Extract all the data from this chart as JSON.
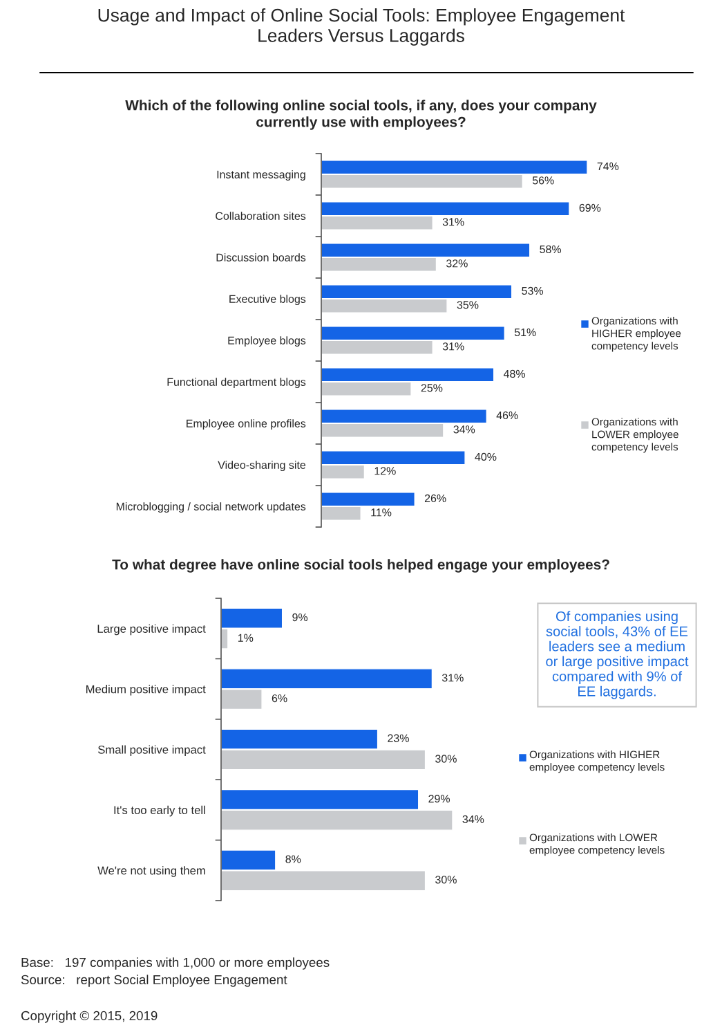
{
  "chart_data": [
    {
      "type": "bar",
      "orientation": "horizontal",
      "title": "Usage and Impact of Online Social Tools: Employee Engagement Leaders Versus Laggards",
      "subtitle": "Which of the following online social tools, if any, does your company currently use with employees?",
      "categories": [
        "Instant messaging",
        "Collaboration sites",
        "Discussion boards",
        "Executive blogs",
        "Employee blogs",
        "Functional department blogs",
        "Employee online profiles",
        "Video-sharing site",
        "Microblogging / social network updates"
      ],
      "series": [
        {
          "name": "Organizations with HIGHER employee competency levels",
          "color": "#1464e6",
          "values": [
            74,
            69,
            58,
            53,
            51,
            48,
            46,
            40,
            26
          ],
          "value_labels": [
            "74%",
            "69%",
            "58%",
            "53%",
            "51%",
            "48%",
            "46%",
            "40%",
            "26%"
          ]
        },
        {
          "name": "Organizations with LOWER employee competency levels",
          "color": "#c9cbce",
          "values": [
            56,
            31,
            32,
            35,
            31,
            25,
            34,
            12,
            11
          ],
          "value_labels": [
            "56%",
            "31%",
            "32%",
            "35%",
            "31%",
            "25%",
            "34%",
            "12%",
            "11%"
          ]
        }
      ],
      "legend": "right",
      "grid": false
    },
    {
      "type": "bar",
      "orientation": "horizontal",
      "title": "To what degree have online social tools helped engage your employees?",
      "categories": [
        "Large positive impact",
        "Medium positive impact",
        "Small positive impact",
        "It's too early to tell",
        "We're not using them"
      ],
      "series": [
        {
          "name": "Organizations with HIGHER employee competency levels",
          "color": "#1464e6",
          "values": [
            9,
            31,
            23,
            29,
            8
          ],
          "value_labels": [
            "9%",
            "31%",
            "23%",
            "29%",
            "8%"
          ]
        },
        {
          "name": "Organizations with LOWER employee competency levels",
          "color": "#c9cbce",
          "values": [
            1,
            6,
            30,
            34,
            30
          ],
          "value_labels": [
            "1%",
            "6%",
            "30%",
            "34%",
            "30%"
          ]
        }
      ],
      "legend": "right",
      "grid": false,
      "annotations": [
        "Of companies using social tools, 43% of EE leaders see a medium or large positive impact compared with 9% of EE laggards.",
        "Base:   197 companies with 1,000 or more employees",
        "Source:   report Social Employee Engagement",
        "Copyright © 2015, 2019"
      ]
    }
  ]
}
